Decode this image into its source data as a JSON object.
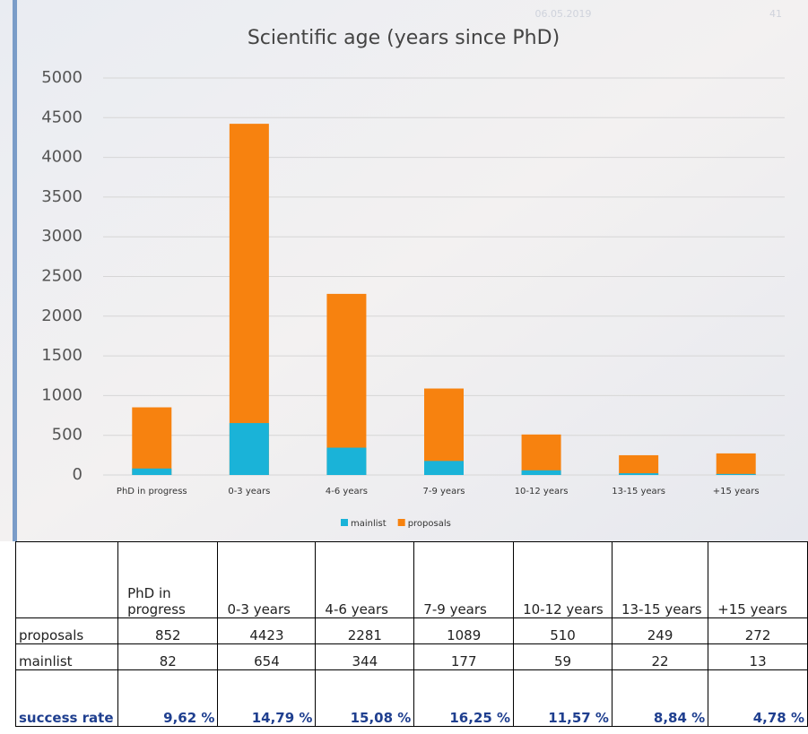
{
  "slide": {
    "date": "06.05.2019",
    "page": "41"
  },
  "chart_data": {
    "type": "bar",
    "title": "Scientific age (years since PhD)",
    "categories": [
      "PhD in progress",
      "0-3 years",
      "4-6 years",
      "7-9 years",
      "10-12 years",
      "13-15 years",
      "+15 years"
    ],
    "series": [
      {
        "name": "mainlist",
        "color": "#1ab3d8",
        "values": [
          82,
          654,
          344,
          177,
          59,
          22,
          13
        ]
      },
      {
        "name": "proposals",
        "color": "#f7820f",
        "values": [
          852,
          4423,
          2281,
          1089,
          510,
          249,
          272
        ]
      }
    ],
    "ylim": [
      0,
      5000
    ],
    "yticks": [
      0,
      500,
      1000,
      1500,
      2000,
      2500,
      3000,
      3500,
      4000,
      4500,
      5000
    ],
    "grid": true,
    "legend": "bottom"
  },
  "table": {
    "success_label": "success rate",
    "success_rate": [
      "9,62 %",
      "14,79 %",
      "15,08 %",
      "16,25 %",
      "11,57 %",
      "8,84 %",
      "4,78 %"
    ]
  }
}
